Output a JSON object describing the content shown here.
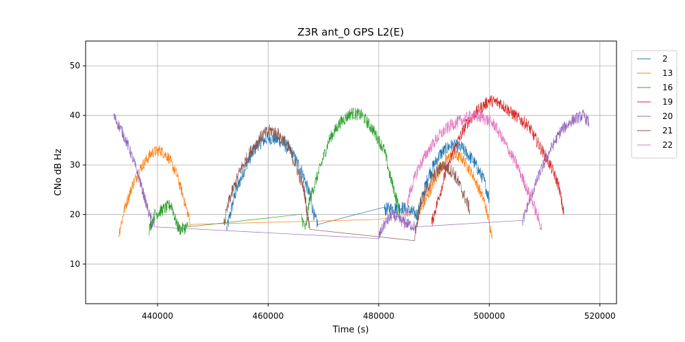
{
  "chart_data": {
    "type": "line",
    "title": "Z3R ant_0 GPS L2(E)",
    "xlabel": "Time (s)",
    "ylabel": "CNo dB Hz",
    "xlim": [
      427000,
      523000
    ],
    "ylim": [
      2,
      55
    ],
    "xticks": [
      440000,
      460000,
      480000,
      500000,
      520000
    ],
    "yticks": [
      10,
      20,
      30,
      40,
      50
    ],
    "grid": true,
    "legend": "upper-right-outside",
    "series": [
      {
        "name": "2",
        "color": "#1f77b4",
        "noise": 1.4,
        "points": [
          [
            452500,
            17
          ],
          [
            454000,
            24
          ],
          [
            456000,
            30
          ],
          [
            458000,
            34
          ],
          [
            460000,
            35.5
          ],
          [
            462000,
            35
          ],
          [
            464000,
            33
          ],
          [
            466000,
            29
          ],
          [
            467500,
            24
          ],
          [
            468500,
            19
          ],
          [
            469000,
            18
          ],
          [
            481000,
            21
          ],
          [
            484000,
            21.5
          ],
          [
            487000,
            20
          ],
          [
            489000,
            28
          ],
          [
            491000,
            32
          ],
          [
            493000,
            34
          ],
          [
            495000,
            33.5
          ],
          [
            497000,
            31
          ],
          [
            499000,
            27
          ],
          [
            500000,
            23
          ]
        ]
      },
      {
        "name": "13",
        "color": "#ff7f0e",
        "noise": 1.2,
        "points": [
          [
            433000,
            16
          ],
          [
            434000,
            21
          ],
          [
            435500,
            26
          ],
          [
            437000,
            29.5
          ],
          [
            439000,
            32.5
          ],
          [
            440500,
            33
          ],
          [
            442000,
            31.5
          ],
          [
            443500,
            28
          ],
          [
            444800,
            23
          ],
          [
            446000,
            18
          ],
          [
            480000,
            19
          ],
          [
            487000,
            19.5
          ],
          [
            489000,
            24
          ],
          [
            491000,
            29
          ],
          [
            493000,
            32
          ],
          [
            495000,
            31.5
          ],
          [
            497000,
            28
          ],
          [
            499000,
            23
          ],
          [
            500500,
            16
          ]
        ]
      },
      {
        "name": "16",
        "color": "#2ca02c",
        "noise": 1.3,
        "points": [
          [
            438500,
            17
          ],
          [
            439500,
            20
          ],
          [
            441000,
            21
          ],
          [
            442500,
            22
          ],
          [
            443500,
            18
          ],
          [
            444000,
            17
          ],
          [
            445500,
            17.5
          ],
          [
            466000,
            19.5
          ],
          [
            466800,
            17
          ],
          [
            467500,
            23
          ],
          [
            469000,
            28
          ],
          [
            471000,
            35
          ],
          [
            473000,
            38.5
          ],
          [
            475000,
            40.5
          ],
          [
            477000,
            40
          ],
          [
            479000,
            37
          ],
          [
            481000,
            33
          ],
          [
            482000,
            28
          ],
          [
            483500,
            22
          ],
          [
            484000,
            19
          ]
        ]
      },
      {
        "name": "19",
        "color": "#d62728",
        "noise": 1.3,
        "points": [
          [
            489500,
            18
          ],
          [
            490500,
            22
          ],
          [
            492000,
            28
          ],
          [
            494000,
            34
          ],
          [
            496000,
            38.5
          ],
          [
            498000,
            41
          ],
          [
            500000,
            43
          ],
          [
            502000,
            42.5
          ],
          [
            504000,
            40.5
          ],
          [
            507000,
            38
          ],
          [
            509000,
            34
          ],
          [
            511000,
            30
          ],
          [
            512500,
            26
          ],
          [
            513500,
            20
          ]
        ]
      },
      {
        "name": "20",
        "color": "#9467bd",
        "noise": 1.2,
        "points": [
          [
            432000,
            40
          ],
          [
            433500,
            37
          ],
          [
            435000,
            33
          ],
          [
            436500,
            28
          ],
          [
            437500,
            24
          ],
          [
            438500,
            20
          ],
          [
            439500,
            17.5
          ],
          [
            480000,
            15.5
          ],
          [
            481000,
            18
          ],
          [
            482500,
            20
          ],
          [
            483500,
            19
          ],
          [
            486500,
            17.5
          ],
          [
            506000,
            18.5
          ],
          [
            507000,
            22
          ],
          [
            509000,
            28
          ],
          [
            511000,
            33
          ],
          [
            513000,
            37
          ],
          [
            515000,
            39
          ],
          [
            517000,
            40
          ],
          [
            518000,
            38.5
          ]
        ]
      },
      {
        "name": "21",
        "color": "#8c564b",
        "noise": 1.4,
        "points": [
          [
            452000,
            18
          ],
          [
            453000,
            23
          ],
          [
            455000,
            29
          ],
          [
            457000,
            33
          ],
          [
            459000,
            36
          ],
          [
            460500,
            37
          ],
          [
            462000,
            36
          ],
          [
            463500,
            34
          ],
          [
            465000,
            30
          ],
          [
            466500,
            25
          ],
          [
            467500,
            17
          ],
          [
            486500,
            16
          ],
          [
            487500,
            22
          ],
          [
            489500,
            27
          ],
          [
            491500,
            30
          ],
          [
            493500,
            28.5
          ],
          [
            495000,
            25
          ],
          [
            496500,
            21
          ]
        ]
      },
      {
        "name": "22",
        "color": "#e377c2",
        "noise": 1.3,
        "points": [
          [
            484500,
            17
          ],
          [
            485500,
            24
          ],
          [
            487000,
            29
          ],
          [
            489000,
            33
          ],
          [
            491000,
            36
          ],
          [
            493000,
            38
          ],
          [
            495000,
            39
          ],
          [
            497000,
            40
          ],
          [
            499000,
            39.5
          ],
          [
            501000,
            38
          ],
          [
            503000,
            34
          ],
          [
            505000,
            30
          ],
          [
            506500,
            26
          ],
          [
            508000,
            22
          ],
          [
            509500,
            17
          ]
        ]
      }
    ]
  }
}
